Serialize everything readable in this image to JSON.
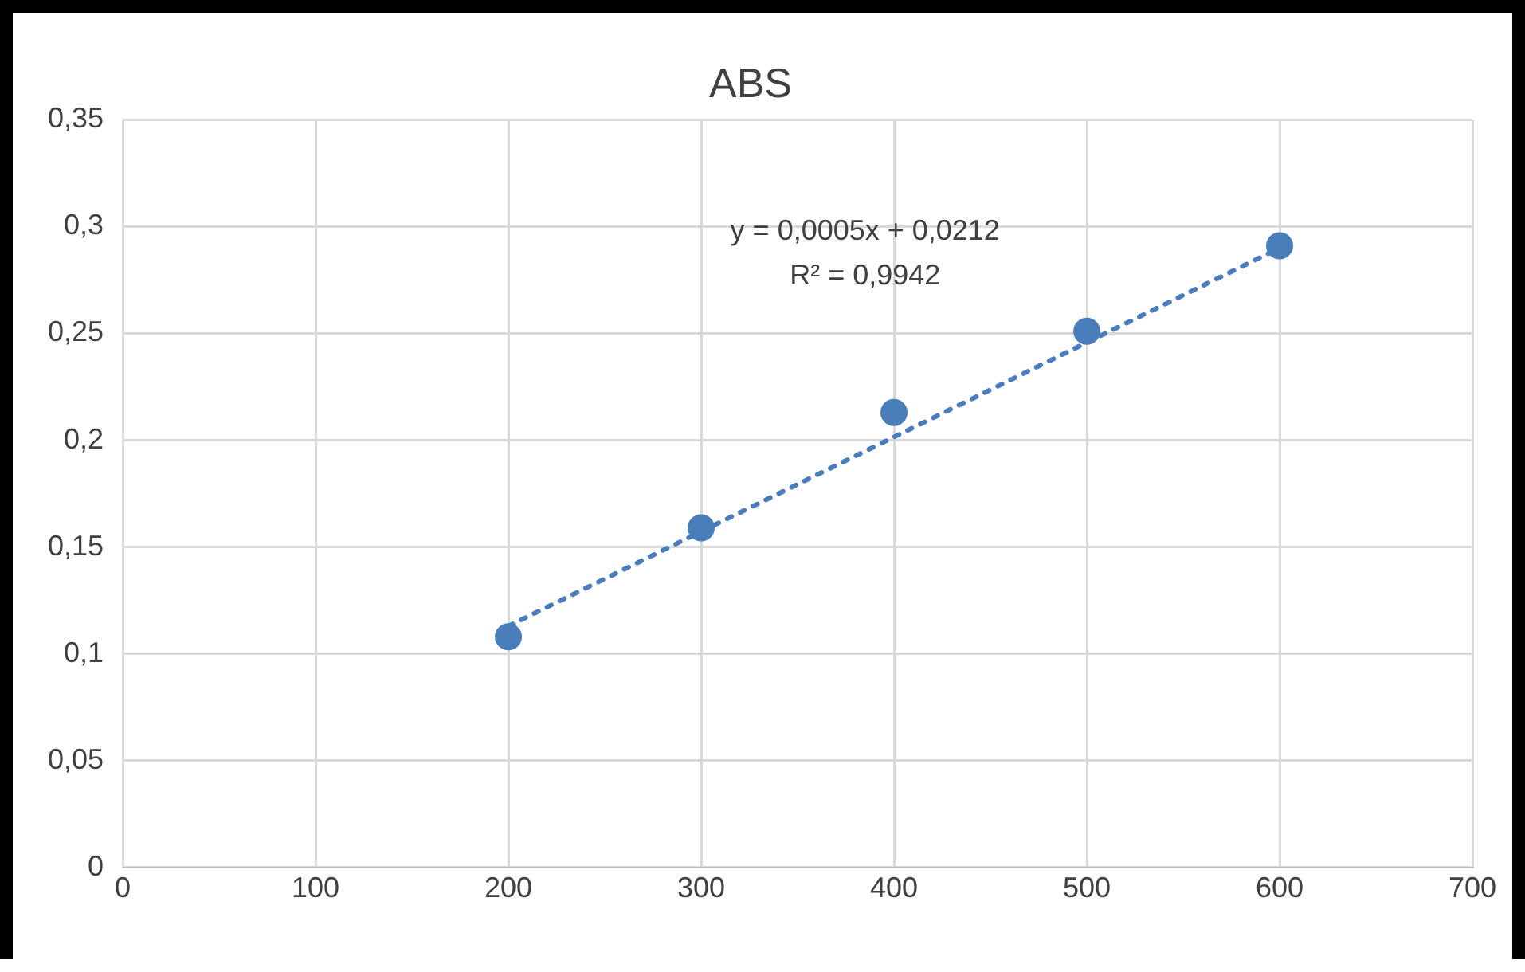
{
  "chart_data": {
    "type": "scatter",
    "title": "ABS",
    "series": [
      {
        "type": "scatter",
        "color": "#4a7ebb",
        "x": [
          200,
          300,
          400,
          500,
          600
        ],
        "values": [
          0.108,
          0.159,
          0.213,
          0.251,
          0.291
        ],
        "marker": "circle"
      },
      {
        "type": "line",
        "color": "#4a7ebb",
        "x": [
          200,
          600
        ],
        "values": [
          0.113,
          0.29
        ],
        "line_style": "dotted",
        "marker": "none"
      }
    ],
    "annotations": [
      "y = 0,0005x + 0,0212",
      "R² = 0,9942"
    ],
    "xlim": [
      0,
      700
    ],
    "xticks": [
      0,
      100,
      200,
      300,
      400,
      500,
      600,
      700
    ],
    "ylim": [
      0,
      0.35
    ],
    "yticks": [
      0,
      {
        "value": 0.05,
        "label": "0,05"
      },
      {
        "value": 0.1,
        "label": "0,1"
      },
      {
        "value": 0.15,
        "label": "0,15"
      },
      {
        "value": 0.2,
        "label": "0,2"
      },
      {
        "value": 0.25,
        "label": "0,25"
      },
      {
        "value": 0.3,
        "label": "0,3"
      },
      {
        "value": 0.35,
        "label": "0,35"
      }
    ],
    "grid": true,
    "legend": false
  }
}
